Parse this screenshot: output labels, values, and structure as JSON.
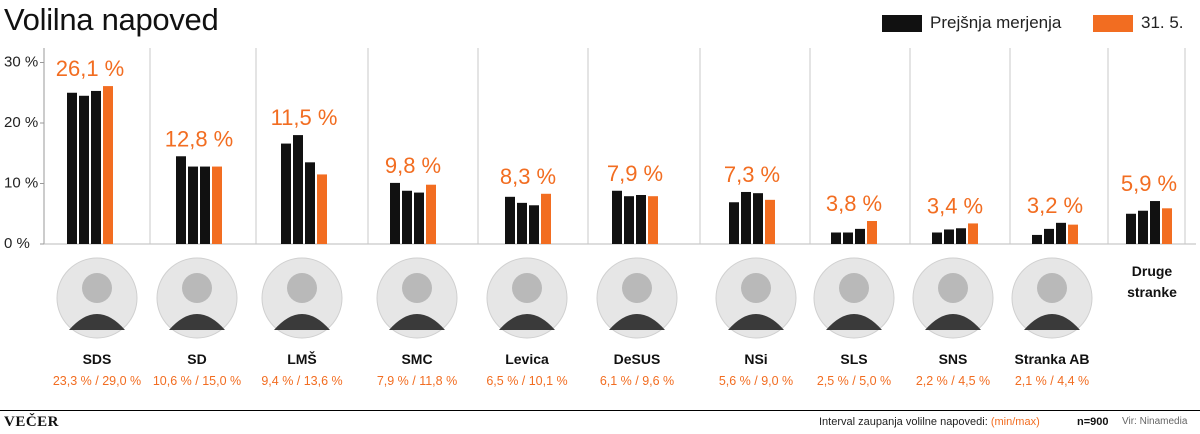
{
  "title": "Volilna napoved",
  "legend": [
    {
      "label": "Prejšnja merjenja",
      "color": "#111111"
    },
    {
      "label": "31. 5.",
      "color": "#f26d21"
    }
  ],
  "footer": {
    "brand": "VEČER",
    "interval_label": "Interval zaupanja volilne napovedi:",
    "interval_minmax": "(min/max)",
    "sample": "n=900",
    "source": "Vir: Ninamedia"
  },
  "chart_data": {
    "type": "bar",
    "ylim": [
      0,
      30
    ],
    "yticks": [
      {
        "value": 0,
        "label": "0 %"
      },
      {
        "value": 10,
        "label": "10 %"
      },
      {
        "value": 20,
        "label": "20 %"
      },
      {
        "value": 30,
        "label": "30 %"
      }
    ],
    "grid": "vertical separators",
    "colors": {
      "previous": "#111111",
      "current": "#f26d21"
    },
    "parties": [
      {
        "name": "SDS",
        "previous": [
          25.0,
          24.5,
          25.3
        ],
        "current": 26.1,
        "current_label": "26,1 %",
        "interval": "23,3 % / 29,0 %",
        "icon": "portrait-sds-icon"
      },
      {
        "name": "SD",
        "previous": [
          14.5,
          12.8,
          12.8
        ],
        "current": 12.8,
        "current_label": "12,8 %",
        "interval": "10,6 % / 15,0 %",
        "icon": "portrait-sd-icon"
      },
      {
        "name": "LMŠ",
        "previous": [
          16.6,
          18.0,
          13.5
        ],
        "current": 11.5,
        "current_label": "11,5 %",
        "interval": "9,4 % / 13,6 %",
        "icon": "portrait-lms-icon"
      },
      {
        "name": "SMC",
        "previous": [
          10.1,
          8.8,
          8.5
        ],
        "current": 9.8,
        "current_label": "9,8 %",
        "interval": "7,9  % / 11,8 %",
        "icon": "portrait-smc-icon"
      },
      {
        "name": "Levica",
        "previous": [
          7.8,
          6.8,
          6.4
        ],
        "current": 8.3,
        "current_label": "8,3 %",
        "interval": "6,5 % / 10,1 %",
        "icon": "portrait-levica-icon"
      },
      {
        "name": "DeSUS",
        "previous": [
          8.8,
          7.9,
          8.1
        ],
        "current": 7.9,
        "current_label": "7,9 %",
        "interval": "6,1 % / 9,6 %",
        "icon": "portrait-desus-icon"
      },
      {
        "name": "NSi",
        "previous": [
          6.9,
          8.6,
          8.4
        ],
        "current": 7.3,
        "current_label": "7,3 %",
        "interval": "5,6 % / 9,0 %",
        "icon": "portrait-nsi-icon"
      },
      {
        "name": "SLS",
        "previous": [
          1.9,
          1.9,
          2.5
        ],
        "current": 3.8,
        "current_label": "3,8 %",
        "interval": "2,5 % / 5,0 %",
        "icon": "portrait-sls-icon"
      },
      {
        "name": "SNS",
        "previous": [
          1.9,
          2.4,
          2.6
        ],
        "current": 3.4,
        "current_label": "3,4 %",
        "interval": "2,2 % / 4,5 %",
        "icon": "portrait-sns-icon"
      },
      {
        "name": "Stranka AB",
        "previous": [
          1.5,
          2.5,
          3.5
        ],
        "current": 3.2,
        "current_label": "3,2 %",
        "interval": "2,1 % / 4,4 %",
        "icon": "portrait-stranka-ab-icon"
      },
      {
        "name": "Druge stranke",
        "previous": [
          5.0,
          5.5,
          7.1
        ],
        "current": 5.9,
        "current_label": "5,9 %",
        "interval": "",
        "icon": ""
      }
    ]
  }
}
